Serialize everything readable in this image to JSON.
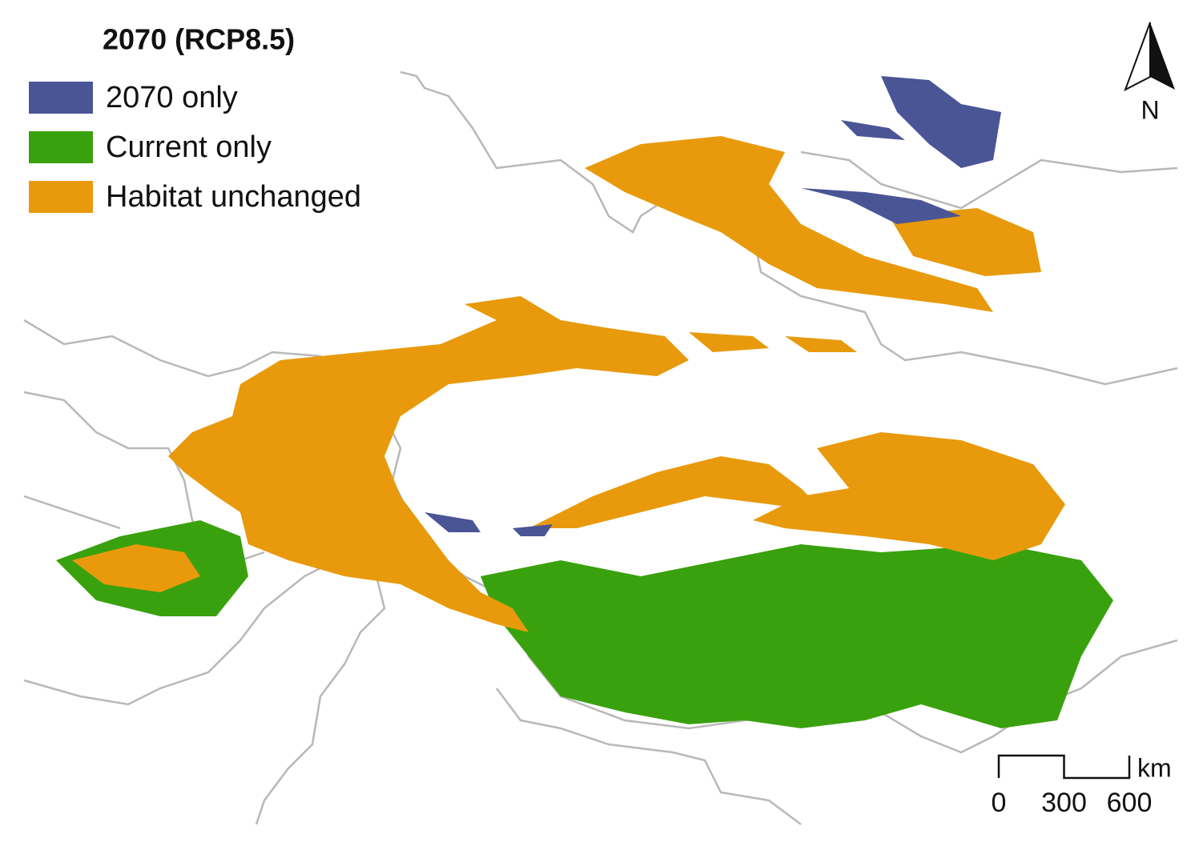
{
  "title": "2070 (RCP8.5)",
  "legend": [
    {
      "label": "2070 only",
      "color": "#4a5596"
    },
    {
      "label": "Current only",
      "color": "#3aa10e"
    },
    {
      "label": "Habitat unchanged",
      "color": "#e89a0c"
    }
  ],
  "north_label": "N",
  "scale_bar": {
    "unit": "km",
    "ticks": [
      0,
      300,
      600
    ]
  }
}
